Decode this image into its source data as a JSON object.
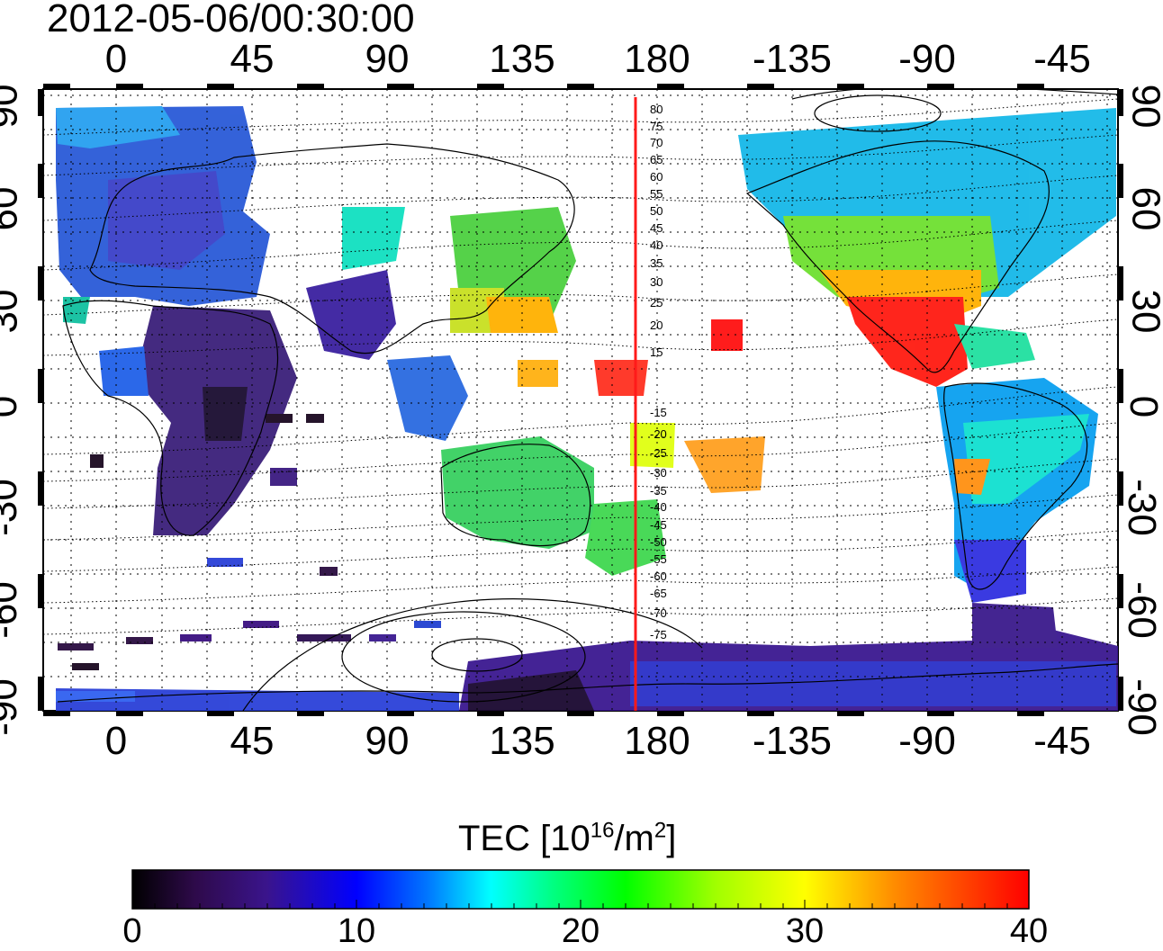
{
  "timestamp": "2012-05-06/00:30:00",
  "map": {
    "type": "world-map-tec",
    "projection": "equirectangular",
    "center_longitude": 180,
    "gridlines": "dotted",
    "marker_line": {
      "longitude": 172,
      "color": "#ff1a1a"
    },
    "top_lon_ticks": [
      "0",
      "45",
      "90",
      "135",
      "180",
      "-135",
      "-90",
      "-45"
    ],
    "bottom_lon_ticks": [
      "0",
      "45",
      "90",
      "135",
      "180",
      "-135",
      "-90",
      "-45"
    ],
    "left_lat_ticks": [
      "90",
      "60",
      "30",
      "0",
      "-30",
      "-60",
      "-90"
    ],
    "right_lat_ticks": [
      "90",
      "60",
      "30",
      "0",
      "-30",
      "-60",
      "-90"
    ],
    "contour_labels": [
      "80",
      "75",
      "70",
      "65",
      "60",
      "55",
      "50",
      "45",
      "40",
      "35",
      "30",
      "25",
      "20",
      "15",
      "-15",
      "-20",
      "-25",
      "-30",
      "-35",
      "-40",
      "-45",
      "-50",
      "-55",
      "-60",
      "-65",
      "-70",
      "-75"
    ]
  },
  "colorbar": {
    "title_main": "TEC  [10",
    "title_sup1": "16",
    "title_mid": "/m",
    "title_sup2": "2",
    "title_end": "]",
    "ticks": [
      "0",
      "10",
      "20",
      "30",
      "40"
    ],
    "range": [
      0,
      40
    ],
    "colors": [
      "#000000",
      "#3a0a5a",
      "#3a1a9a",
      "#0000ff",
      "#0078ff",
      "#00ffff",
      "#00ff78",
      "#00ff00",
      "#a0ff00",
      "#ffff00",
      "#ff9000",
      "#ff0000"
    ]
  }
}
